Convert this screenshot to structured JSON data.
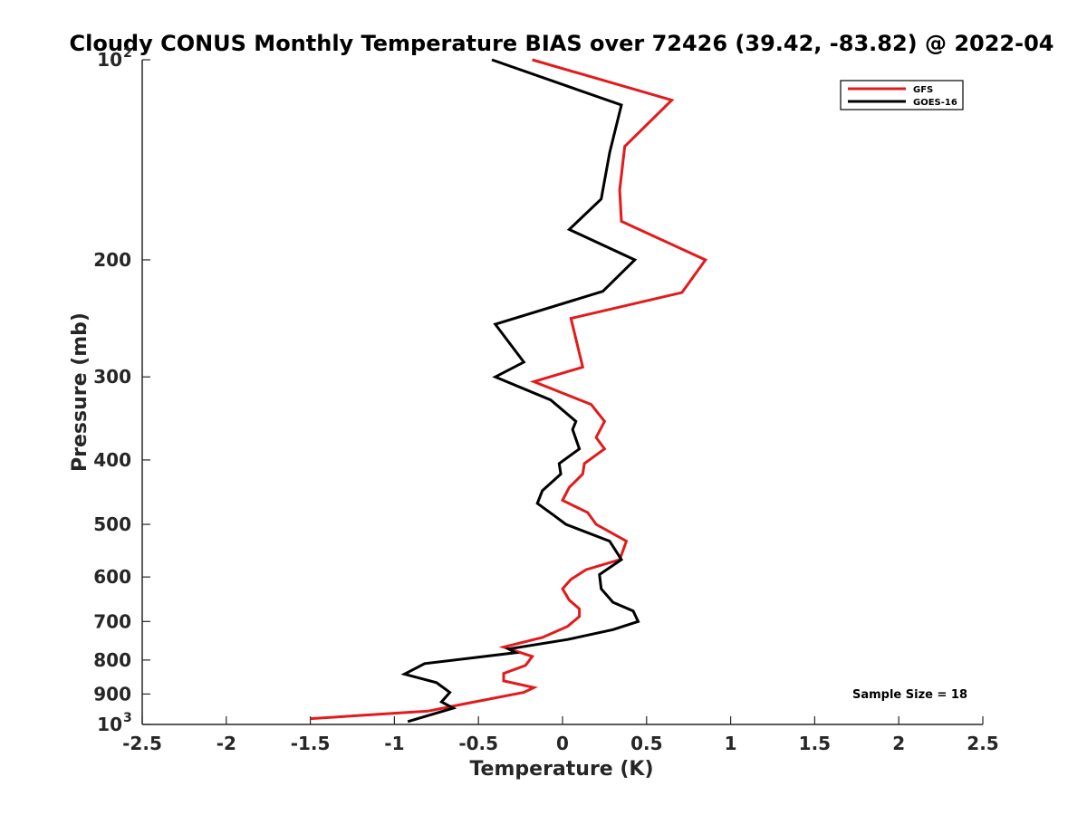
{
  "chart_data": {
    "type": "line",
    "title": "Cloudy CONUS Monthly Temperature BIAS over 72426 (39.42, -83.82) @ 2022-04",
    "xlabel": "Temperature (K)",
    "ylabel": "Pressure (mb)",
    "xlim": [
      -2.5,
      2.5
    ],
    "ylim": [
      100,
      1000
    ],
    "y_scale": "log",
    "y_direction": "reversed",
    "grid": false,
    "legend_position": "top-right",
    "x_ticks": [
      "-2.5",
      "-2",
      "-1.5",
      "-1",
      "-0.5",
      "0",
      "0.5",
      "1",
      "1.5",
      "2",
      "2.5"
    ],
    "x_tick_values": [
      -2.5,
      -2,
      -1.5,
      -1,
      -0.5,
      0,
      0.5,
      1,
      1.5,
      2,
      2.5
    ],
    "y_ticks": [
      {
        "value": 100,
        "base": "10",
        "exp": "2"
      },
      {
        "value": 200,
        "label": "200"
      },
      {
        "value": 300,
        "label": "300"
      },
      {
        "value": 400,
        "label": "400"
      },
      {
        "value": 500,
        "label": "500"
      },
      {
        "value": 600,
        "label": "600"
      },
      {
        "value": 700,
        "label": "700"
      },
      {
        "value": 800,
        "label": "800"
      },
      {
        "value": 900,
        "label": "900"
      },
      {
        "value": 1000,
        "base": "10",
        "exp": "3"
      }
    ],
    "annotation": "Sample Size = 18",
    "series": [
      {
        "name": "GFS",
        "color": "#e31a1c",
        "points": [
          [
            -0.18,
            100
          ],
          [
            0.65,
            115
          ],
          [
            0.37,
            135
          ],
          [
            0.34,
            157
          ],
          [
            0.35,
            175
          ],
          [
            0.85,
            200
          ],
          [
            0.71,
            224
          ],
          [
            0.05,
            245
          ],
          [
            0.12,
            290
          ],
          [
            -0.17,
            305
          ],
          [
            0.17,
            330
          ],
          [
            0.25,
            350
          ],
          [
            0.2,
            370
          ],
          [
            0.25,
            385
          ],
          [
            0.13,
            405
          ],
          [
            0.12,
            420
          ],
          [
            0.04,
            440
          ],
          [
            0.0,
            460
          ],
          [
            0.15,
            480
          ],
          [
            0.2,
            500
          ],
          [
            0.38,
            530
          ],
          [
            0.34,
            565
          ],
          [
            0.14,
            585
          ],
          [
            0.05,
            605
          ],
          [
            0.0,
            625
          ],
          [
            0.04,
            650
          ],
          [
            0.1,
            670
          ],
          [
            0.1,
            688
          ],
          [
            0.03,
            712
          ],
          [
            -0.12,
            740
          ],
          [
            -0.35,
            765
          ],
          [
            -0.18,
            790
          ],
          [
            -0.22,
            815
          ],
          [
            -0.35,
            838
          ],
          [
            -0.35,
            860
          ],
          [
            -0.17,
            880
          ],
          [
            -0.23,
            895
          ],
          [
            -0.62,
            935
          ],
          [
            -0.8,
            955
          ],
          [
            -1.5,
            980
          ]
        ]
      },
      {
        "name": "GOES-16",
        "color": "#000000",
        "points": [
          [
            -0.42,
            100
          ],
          [
            0.35,
            117
          ],
          [
            0.28,
            138
          ],
          [
            0.23,
            162
          ],
          [
            0.04,
            180
          ],
          [
            0.43,
            200
          ],
          [
            0.24,
            223
          ],
          [
            -0.4,
            250
          ],
          [
            -0.23,
            285
          ],
          [
            -0.4,
            300
          ],
          [
            -0.07,
            325
          ],
          [
            0.08,
            350
          ],
          [
            0.06,
            360
          ],
          [
            0.1,
            385
          ],
          [
            -0.02,
            405
          ],
          [
            -0.01,
            420
          ],
          [
            -0.12,
            445
          ],
          [
            -0.15,
            465
          ],
          [
            -0.05,
            485
          ],
          [
            0.02,
            500
          ],
          [
            0.28,
            530
          ],
          [
            0.35,
            565
          ],
          [
            0.22,
            595
          ],
          [
            0.23,
            625
          ],
          [
            0.3,
            655
          ],
          [
            0.42,
            675
          ],
          [
            0.45,
            700
          ],
          [
            0.3,
            720
          ],
          [
            0.03,
            745
          ],
          [
            -0.32,
            770
          ],
          [
            -0.28,
            780
          ],
          [
            -0.82,
            810
          ],
          [
            -0.94,
            840
          ],
          [
            -0.75,
            865
          ],
          [
            -0.67,
            895
          ],
          [
            -0.72,
            925
          ],
          [
            -0.65,
            945
          ],
          [
            -0.92,
            990
          ]
        ]
      }
    ]
  }
}
